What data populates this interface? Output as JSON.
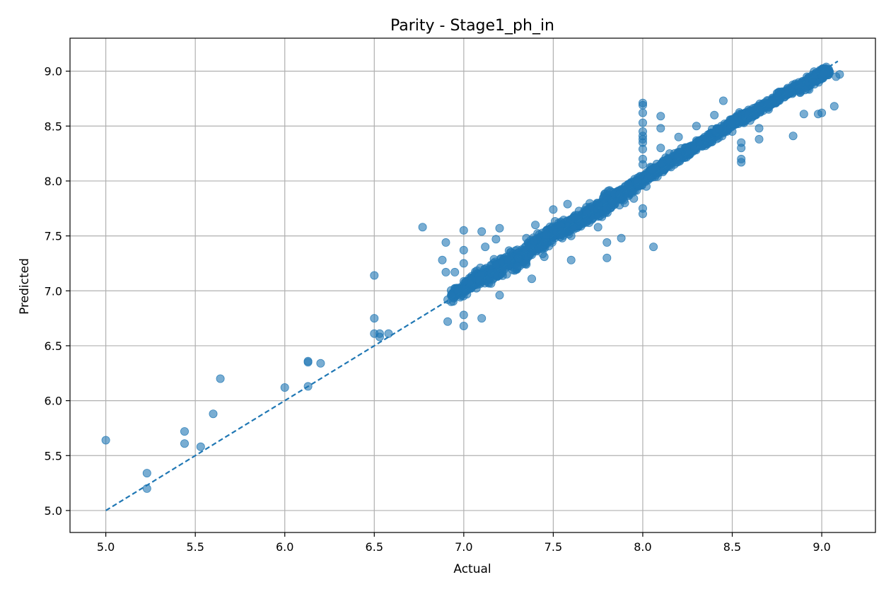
{
  "chart_data": {
    "type": "scatter",
    "title": "Parity - Stage1_ph_in",
    "xlabel": "Actual",
    "ylabel": "Predicted",
    "xlim": [
      4.8,
      9.3
    ],
    "ylim": [
      4.8,
      9.3
    ],
    "xticks": [
      "5.0",
      "5.5",
      "6.0",
      "6.5",
      "7.0",
      "7.5",
      "8.0",
      "8.5",
      "9.0"
    ],
    "yticks": [
      "5.0",
      "5.5",
      "6.0",
      "6.5",
      "7.0",
      "7.5",
      "8.0",
      "8.5",
      "9.0"
    ],
    "grid": true,
    "marker_color": "#1f77b4",
    "marker_opacity": 0.6,
    "parity_line": {
      "x": [
        5.0,
        9.09
      ],
      "y": [
        5.0,
        9.09
      ],
      "style": "dashed",
      "color": "#1f77b4"
    },
    "points": [
      [
        5.0,
        5.64
      ],
      [
        5.23,
        5.34
      ],
      [
        5.23,
        5.2
      ],
      [
        5.44,
        5.72
      ],
      [
        5.44,
        5.61
      ],
      [
        5.53,
        5.58
      ],
      [
        5.6,
        5.88
      ],
      [
        5.64,
        6.2
      ],
      [
        6.0,
        6.12
      ],
      [
        6.13,
        6.36
      ],
      [
        6.13,
        6.35
      ],
      [
        6.13,
        6.13
      ],
      [
        6.2,
        6.34
      ],
      [
        6.5,
        7.14
      ],
      [
        6.5,
        6.75
      ],
      [
        6.5,
        6.61
      ],
      [
        6.53,
        6.61
      ],
      [
        6.53,
        6.58
      ],
      [
        6.58,
        6.61
      ],
      [
        6.77,
        7.58
      ],
      [
        6.88,
        7.28
      ],
      [
        6.9,
        7.44
      ],
      [
        6.9,
        7.17
      ],
      [
        6.91,
        6.92
      ],
      [
        6.91,
        6.72
      ],
      [
        6.93,
        6.96
      ],
      [
        6.93,
        6.9
      ],
      [
        6.95,
        7.17
      ],
      [
        6.97,
        7.0
      ],
      [
        7.0,
        7.55
      ],
      [
        7.0,
        7.37
      ],
      [
        7.0,
        7.25
      ],
      [
        7.0,
        6.78
      ],
      [
        7.0,
        6.68
      ],
      [
        7.1,
        7.54
      ],
      [
        7.1,
        6.75
      ],
      [
        7.12,
        7.4
      ],
      [
        7.18,
        7.47
      ],
      [
        7.2,
        7.57
      ],
      [
        7.2,
        6.96
      ],
      [
        7.3,
        7.22
      ],
      [
        7.35,
        7.48
      ],
      [
        7.38,
        7.11
      ],
      [
        7.4,
        7.6
      ],
      [
        7.45,
        7.31
      ],
      [
        7.5,
        7.74
      ],
      [
        7.55,
        7.48
      ],
      [
        7.58,
        7.79
      ],
      [
        7.6,
        7.28
      ],
      [
        7.6,
        7.5
      ],
      [
        7.7,
        7.62
      ],
      [
        7.75,
        7.58
      ],
      [
        7.8,
        7.44
      ],
      [
        7.8,
        7.3
      ],
      [
        7.88,
        7.48
      ],
      [
        7.9,
        7.8
      ],
      [
        7.95,
        7.84
      ],
      [
        8.0,
        8.71
      ],
      [
        8.0,
        8.69
      ],
      [
        8.0,
        8.62
      ],
      [
        8.0,
        8.53
      ],
      [
        8.0,
        8.45
      ],
      [
        8.0,
        8.41
      ],
      [
        8.0,
        8.38
      ],
      [
        8.0,
        8.35
      ],
      [
        8.0,
        8.29
      ],
      [
        8.0,
        8.2
      ],
      [
        8.0,
        8.15
      ],
      [
        8.0,
        7.7
      ],
      [
        8.0,
        7.75
      ],
      [
        8.06,
        7.4
      ],
      [
        8.1,
        8.59
      ],
      [
        8.1,
        8.48
      ],
      [
        8.1,
        8.3
      ],
      [
        8.2,
        8.4
      ],
      [
        8.3,
        8.5
      ],
      [
        8.4,
        8.6
      ],
      [
        8.45,
        8.73
      ],
      [
        8.55,
        8.35
      ],
      [
        8.55,
        8.3
      ],
      [
        8.55,
        8.2
      ],
      [
        8.55,
        8.17
      ],
      [
        8.65,
        8.38
      ],
      [
        8.65,
        8.48
      ],
      [
        8.8,
        8.78
      ],
      [
        8.84,
        8.41
      ],
      [
        8.9,
        8.61
      ],
      [
        8.98,
        8.61
      ],
      [
        9.0,
        8.62
      ],
      [
        9.07,
        8.68
      ],
      [
        9.08,
        8.95
      ],
      [
        9.1,
        8.97
      ],
      [
        7.6,
        7.65
      ],
      [
        8.02,
        7.95
      ],
      [
        8.05,
        8.1
      ],
      [
        8.15,
        8.25
      ],
      [
        8.25,
        8.27
      ],
      [
        8.35,
        8.32
      ],
      [
        8.5,
        8.45
      ],
      [
        8.7,
        8.7
      ],
      [
        8.95,
        8.9
      ],
      [
        8.6,
        8.55
      ],
      [
        8.75,
        8.8
      ]
    ],
    "dense_band": [
      [
        6.93,
        6.95,
        0.035
      ],
      [
        7.0,
        7.02,
        0.05
      ],
      [
        7.08,
        7.12,
        0.06
      ],
      [
        7.15,
        7.16,
        0.06
      ],
      [
        7.22,
        7.23,
        0.07
      ],
      [
        7.3,
        7.3,
        0.07
      ],
      [
        7.38,
        7.38,
        0.07
      ],
      [
        7.45,
        7.45,
        0.06
      ],
      [
        7.52,
        7.55,
        0.06
      ],
      [
        7.6,
        7.6,
        0.05
      ],
      [
        7.68,
        7.68,
        0.05
      ],
      [
        7.75,
        7.75,
        0.06
      ],
      [
        7.82,
        7.82,
        0.06
      ],
      [
        7.9,
        7.9,
        0.05
      ],
      [
        7.97,
        7.98,
        0.04
      ],
      [
        8.03,
        8.05,
        0.04
      ],
      [
        8.1,
        8.12,
        0.04
      ],
      [
        8.18,
        8.2,
        0.035
      ],
      [
        8.25,
        8.27,
        0.035
      ],
      [
        8.32,
        8.34,
        0.035
      ],
      [
        8.4,
        8.42,
        0.035
      ],
      [
        8.48,
        8.5,
        0.035
      ],
      [
        8.55,
        8.57,
        0.035
      ],
      [
        8.62,
        8.62,
        0.03
      ],
      [
        8.72,
        8.72,
        0.03
      ],
      [
        8.8,
        8.8,
        0.035
      ],
      [
        8.88,
        8.86,
        0.04
      ],
      [
        8.95,
        8.92,
        0.04
      ],
      [
        9.0,
        8.98,
        0.04
      ],
      [
        9.04,
        9.0,
        0.03
      ]
    ]
  }
}
